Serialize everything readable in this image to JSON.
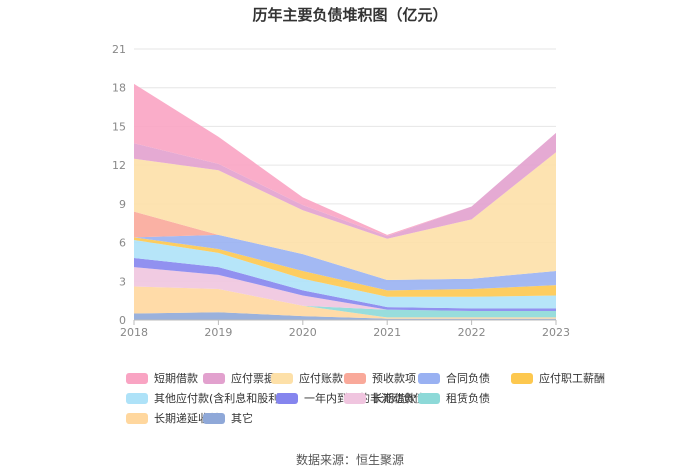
{
  "chart_data": {
    "type": "area",
    "stacked": true,
    "title": "历年主要负债堆积图（亿元）",
    "x": [
      "2018",
      "2019",
      "2020",
      "2021",
      "2022",
      "2023"
    ],
    "ylim": [
      0,
      21
    ],
    "yticks": [
      0,
      3,
      6,
      9,
      12,
      15,
      18,
      21
    ],
    "series": [
      {
        "name": "其它",
        "color": "#8fa8d8",
        "values": [
          0.5,
          0.6,
          0.3,
          0.1,
          0.1,
          0.1
        ]
      },
      {
        "name": "长期递延收益",
        "color": "#ffd79e",
        "values": [
          2.1,
          1.8,
          0.8,
          0.1,
          0.1,
          0.1
        ]
      },
      {
        "name": "租赁负债",
        "color": "#8dd9d8",
        "values": [
          0.0,
          0.0,
          0.0,
          0.6,
          0.5,
          0.5
        ]
      },
      {
        "name": "长期借款",
        "color": "#f0c5df",
        "values": [
          1.5,
          1.1,
          0.8,
          0.0,
          0.0,
          0.0
        ]
      },
      {
        "name": "一年内到期的非流动负债",
        "color": "#8585ee",
        "values": [
          0.7,
          0.6,
          0.4,
          0.2,
          0.2,
          0.2
        ]
      },
      {
        "name": "其他应付款(含利息和股利)",
        "color": "#aee2f8",
        "values": [
          1.4,
          1.1,
          0.9,
          0.8,
          0.9,
          1.0
        ]
      },
      {
        "name": "应付职工薪酬",
        "color": "#fdc84f",
        "values": [
          0.2,
          0.3,
          0.6,
          0.5,
          0.6,
          0.8
        ]
      },
      {
        "name": "合同负债",
        "color": "#99b1f2",
        "values": [
          0.0,
          1.1,
          1.3,
          0.8,
          0.8,
          1.1
        ]
      },
      {
        "name": "预收款项",
        "color": "#f9a99a",
        "values": [
          2.0,
          0.0,
          0.0,
          0.0,
          0.0,
          0.0
        ]
      },
      {
        "name": "应付账款",
        "color": "#fde0a8",
        "values": [
          4.1,
          5.0,
          3.4,
          3.2,
          4.6,
          9.2
        ]
      },
      {
        "name": "应付票据",
        "color": "#e2a1ce",
        "values": [
          1.2,
          0.5,
          0.4,
          0.2,
          1.0,
          1.5
        ]
      },
      {
        "name": "短期借款",
        "color": "#f9a4c3",
        "values": [
          4.6,
          2.1,
          0.6,
          0.1,
          0.0,
          0.0
        ]
      }
    ],
    "legend": {
      "position": "bottom",
      "order": [
        "短期借款",
        "应付票据",
        "应付账款",
        "预收款项",
        "合同负债",
        "应付职工薪酬",
        "其他应付款(含利息和股利)",
        "一年内到期的非流动负债",
        "长期借款",
        "租赁负债",
        "长期递延收益",
        "其它"
      ]
    },
    "source": "数据来源：恒生聚源"
  }
}
